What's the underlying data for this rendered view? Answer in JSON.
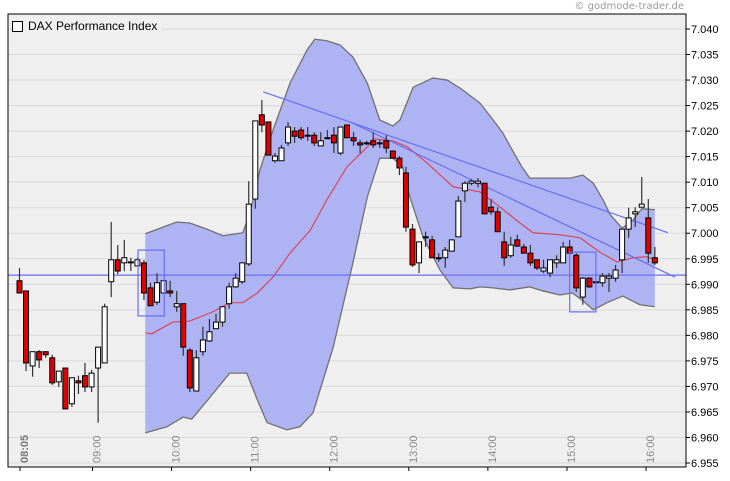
{
  "copyright": "© godmode-trader.de",
  "chart_data": {
    "type": "candlestick",
    "title": "DAX Performance Index",
    "ylabel": "",
    "xlabel": "",
    "ylim": [
      6955,
      7040
    ],
    "y_ticks": [
      7040,
      7035,
      7030,
      7025,
      7020,
      7015,
      7010,
      7005,
      7000,
      6995,
      6990,
      6985,
      6980,
      6975,
      6970,
      6965,
      6960,
      6955
    ],
    "y_tick_labels": [
      "7.040",
      "7.035",
      "7.030",
      "7.025",
      "7.020",
      "7.015",
      "7.010",
      "7.005",
      "7.000",
      "6.995",
      "6.990",
      "6.985",
      "6.980",
      "6.975",
      "6.970",
      "6.965",
      "6.960",
      "6.955"
    ],
    "x_ticks": [
      {
        "label": "08:05",
        "index": 0,
        "bold": true
      },
      {
        "label": "09:00",
        "index": 11
      },
      {
        "label": "10:00",
        "index": 23
      },
      {
        "label": "11:00",
        "index": 35
      },
      {
        "label": "12:00",
        "index": 47
      },
      {
        "label": "13:00",
        "index": 59
      },
      {
        "label": "14:00",
        "index": 71
      },
      {
        "label": "15:00",
        "index": 83
      },
      {
        "label": "16:00",
        "index": 95
      }
    ],
    "grid": true,
    "interval_minutes": 5,
    "candles_ohlc": [
      [
        6990.7,
        6993.2,
        6988.3,
        6988.3
      ],
      [
        6988.7,
        6988.7,
        6973.0,
        6974.6
      ],
      [
        6974.0,
        6976.8,
        6971.9,
        6976.8
      ],
      [
        6976.8,
        6977.1,
        6973.6,
        6975.2
      ],
      [
        6976.8,
        6976.8,
        6975.6,
        6976.2
      ],
      [
        6975.6,
        6976.2,
        6970.3,
        6970.7
      ],
      [
        6970.9,
        6973.0,
        6969.9,
        6973.0
      ],
      [
        6973.6,
        6973.6,
        6965.6,
        6965.6
      ],
      [
        6966.6,
        6971.7,
        6966.0,
        6971.7
      ],
      [
        6971.1,
        6972.1,
        6968.5,
        6970.7
      ],
      [
        6972.1,
        6974.6,
        6968.9,
        6969.9
      ],
      [
        6969.9,
        6973.2,
        6968.9,
        6972.6
      ],
      [
        6973.6,
        6977.7,
        6962.9,
        6977.7
      ],
      [
        6974.6,
        6986.2,
        6974.6,
        6985.6
      ],
      [
        6990.5,
        7002.2,
        6987.5,
        6994.8
      ],
      [
        6994.8,
        6997.7,
        6992.0,
        6992.6
      ],
      [
        6994.2,
        6998.7,
        6992.6,
        6995.2
      ],
      [
        6994.2,
        6995.2,
        6992.6,
        6994.4
      ],
      [
        6993.6,
        6995.2,
        6993.6,
        6994.8
      ],
      [
        6994.2,
        6994.8,
        6986.9,
        6988.3
      ],
      [
        6989.3,
        6990.3,
        6985.8,
        6985.8
      ],
      [
        6986.5,
        6992.2,
        6986.0,
        6990.3
      ],
      [
        6988.3,
        6990.7,
        6988.3,
        6990.7
      ],
      [
        6988.7,
        6990.7,
        6987.5,
        6988.3
      ],
      [
        6985.6,
        6988.7,
        6984.6,
        6986.2
      ],
      [
        6986.2,
        6986.2,
        6976.0,
        6977.7
      ],
      [
        6977.1,
        6977.5,
        6968.9,
        6969.7
      ],
      [
        6969.1,
        6977.1,
        6969.1,
        6975.6
      ],
      [
        6976.8,
        6981.7,
        6976.0,
        6979.1
      ],
      [
        6978.9,
        6983.2,
        6978.7,
        6980.7
      ],
      [
        6981.3,
        6984.2,
        6981.3,
        6982.6
      ],
      [
        6982.6,
        6985.6,
        6981.7,
        6985.6
      ],
      [
        6986.2,
        6990.3,
        6985.2,
        6989.5
      ],
      [
        6989.5,
        6992.2,
        6989.3,
        6991.2
      ],
      [
        6990.5,
        6994.2,
        6990.1,
        6994.2
      ],
      [
        6994.0,
        7010.2,
        6993.6,
        7005.7
      ],
      [
        7006.7,
        7022.0,
        7004.8,
        7022.0
      ],
      [
        7023.2,
        7026.1,
        7019.8,
        7021.2
      ],
      [
        7021.8,
        7021.8,
        7015.3,
        7015.3
      ],
      [
        7014.2,
        7015.7,
        7013.8,
        7015.1
      ],
      [
        7014.2,
        7017.3,
        7014.2,
        7016.7
      ],
      [
        7017.7,
        7021.8,
        7017.1,
        7020.8
      ],
      [
        7020.0,
        7020.8,
        7017.7,
        7019.0
      ],
      [
        7020.2,
        7020.8,
        7018.3,
        7018.7
      ],
      [
        7019.2,
        7020.8,
        7018.1,
        7019.1
      ],
      [
        7019.2,
        7019.8,
        7017.1,
        7017.7
      ],
      [
        7017.1,
        7019.8,
        7017.1,
        7018.1
      ],
      [
        7018.7,
        7020.2,
        7018.5,
        7018.6
      ],
      [
        7019.2,
        7020.8,
        7015.7,
        7017.7
      ],
      [
        7015.7,
        7020.8,
        7015.3,
        7020.8
      ],
      [
        7021.2,
        7021.2,
        7018.7,
        7018.7
      ],
      [
        7018.7,
        7019.8,
        7017.1,
        7018.1
      ],
      [
        7017.7,
        7018.3,
        7015.7,
        7017.3
      ],
      [
        7017.7,
        7018.1,
        7017.3,
        7017.6
      ],
      [
        7018.1,
        7019.8,
        7016.7,
        7017.3
      ],
      [
        7017.7,
        7018.3,
        7016.7,
        7017.6
      ],
      [
        7018.1,
        7019.2,
        7015.7,
        7016.7
      ],
      [
        7016.1,
        7016.1,
        7014.7,
        7014.7
      ],
      [
        7014.7,
        7015.1,
        7011.4,
        7012.8
      ],
      [
        7011.8,
        7013.0,
        7000.3,
        7001.2
      ],
      [
        7000.8,
        7001.8,
        6993.4,
        6993.8
      ],
      [
        6994.2,
        6998.3,
        6992.2,
        6998.3
      ],
      [
        6999.3,
        7000.3,
        6997.3,
        6999.2
      ],
      [
        6998.7,
        6999.5,
        6995.2,
        6995.2
      ],
      [
        6995.2,
        6996.1,
        6994.4,
        6995.1
      ],
      [
        6995.2,
        6997.3,
        6993.2,
        6996.7
      ],
      [
        6996.5,
        6998.7,
        6996.5,
        6998.7
      ],
      [
        6999.3,
        7007.3,
        6999.3,
        7006.3
      ],
      [
        7008.3,
        7010.2,
        7006.1,
        7009.8
      ],
      [
        7009.8,
        7010.6,
        7009.4,
        7010.2
      ],
      [
        7009.8,
        7010.8,
        7009.0,
        7010.2
      ],
      [
        7009.8,
        7009.8,
        7003.8,
        7003.8
      ],
      [
        7005.1,
        7006.7,
        7003.6,
        7004.2
      ],
      [
        7004.2,
        7005.1,
        7000.3,
        7000.3
      ],
      [
        6998.3,
        7000.3,
        6993.6,
        6995.2
      ],
      [
        6995.6,
        6999.3,
        6995.2,
        6997.7
      ],
      [
        6998.7,
        6999.7,
        6997.3,
        6997.5
      ],
      [
        6997.3,
        6997.9,
        6996.1,
        6996.1
      ],
      [
        6996.1,
        6997.7,
        6993.6,
        6994.2
      ],
      [
        6994.8,
        6994.8,
        6992.8,
        6993.2
      ],
      [
        6992.6,
        6994.8,
        6992.2,
        6993.2
      ],
      [
        6992.2,
        6994.8,
        6991.4,
        6994.8
      ],
      [
        6994.2,
        6995.7,
        6993.2,
        6994.8
      ],
      [
        6994.2,
        6998.3,
        6994.2,
        6997.3
      ],
      [
        6997.3,
        6998.7,
        6996.1,
        6996.1
      ],
      [
        6995.7,
        6996.1,
        6988.5,
        6989.3
      ],
      [
        6987.5,
        6991.4,
        6986.0,
        6991.2
      ],
      [
        6991.2,
        6991.4,
        6989.3,
        6989.5
      ],
      [
        6990.5,
        6990.7,
        6990.1,
        6990.4
      ],
      [
        6990.3,
        6992.2,
        6989.5,
        6991.6
      ],
      [
        6991.2,
        6992.2,
        6988.5,
        6991.6
      ],
      [
        6991.2,
        6993.8,
        6990.5,
        6992.8
      ],
      [
        6994.8,
        7000.8,
        6992.2,
        7000.8
      ],
      [
        7000.8,
        7005.0,
        6999.1,
        7003.0
      ],
      [
        7003.8,
        7005.1,
        7001.2,
        7004.2
      ],
      [
        7005.1,
        7011.0,
        7005.1,
        7005.7
      ],
      [
        7003.0,
        7006.7,
        6994.2,
        6996.1
      ],
      [
        6995.2,
        6997.3,
        6993.8,
        6994.2
      ]
    ],
    "bollinger_upper": [
      [
        19.2,
        6999.9
      ],
      [
        21.5,
        7001.0
      ],
      [
        24.0,
        7002.2
      ],
      [
        26.0,
        7002.0
      ],
      [
        28.6,
        7000.8
      ],
      [
        31.1,
        6999.5
      ],
      [
        34.1,
        7000.1
      ],
      [
        35.2,
        7004.0
      ],
      [
        36.7,
        7012.4
      ],
      [
        38.7,
        7020.2
      ],
      [
        41.3,
        7029.4
      ],
      [
        43.9,
        7035.9
      ],
      [
        45.1,
        7038.0
      ],
      [
        46.9,
        7037.7
      ],
      [
        48.9,
        7036.9
      ],
      [
        50.9,
        7034.5
      ],
      [
        53.1,
        7029.4
      ],
      [
        55.0,
        7022.2
      ],
      [
        57.0,
        7021.0
      ],
      [
        58.1,
        7022.2
      ],
      [
        60.1,
        7028.6
      ],
      [
        63.1,
        7030.4
      ],
      [
        65.3,
        7030.0
      ],
      [
        67.3,
        7028.4
      ],
      [
        70.3,
        7025.5
      ],
      [
        72.3,
        7022.2
      ],
      [
        73.8,
        7019.6
      ],
      [
        75.4,
        7015.9
      ],
      [
        76.7,
        7013.0
      ],
      [
        77.9,
        7010.8
      ],
      [
        84.1,
        7010.8
      ],
      [
        86.0,
        7011.4
      ],
      [
        87.6,
        7009.8
      ],
      [
        89.1,
        7006.5
      ],
      [
        90.2,
        7003.6
      ],
      [
        92.0,
        7001.0
      ],
      [
        93.7,
        7002.6
      ],
      [
        95.0,
        7004.8
      ],
      [
        97.0,
        7004.6
      ]
    ],
    "bollinger_lower": [
      [
        19.2,
        6960.9
      ],
      [
        22.5,
        6962.1
      ],
      [
        25.0,
        6964.0
      ],
      [
        26.3,
        6963.6
      ],
      [
        29.1,
        6967.9
      ],
      [
        32.1,
        6972.6
      ],
      [
        34.7,
        6972.6
      ],
      [
        36.3,
        6967.4
      ],
      [
        37.8,
        6962.9
      ],
      [
        40.8,
        6961.5
      ],
      [
        42.8,
        6962.1
      ],
      [
        44.8,
        6964.8
      ],
      [
        47.9,
        6977.7
      ],
      [
        50.9,
        6994.2
      ],
      [
        53.1,
        7007.1
      ],
      [
        55.0,
        7014.7
      ],
      [
        57.0,
        7014.7
      ],
      [
        58.5,
        7013.0
      ],
      [
        59.6,
        7007.1
      ],
      [
        61.6,
        6999.3
      ],
      [
        64.2,
        6992.8
      ],
      [
        66.2,
        6989.3
      ],
      [
        68.8,
        6989.1
      ],
      [
        70.3,
        6989.5
      ],
      [
        72.3,
        6989.3
      ],
      [
        74.9,
        6988.9
      ],
      [
        77.9,
        6989.5
      ],
      [
        79.9,
        6988.7
      ],
      [
        82.5,
        6987.9
      ],
      [
        84.4,
        6988.3
      ],
      [
        85.9,
        6986.9
      ],
      [
        87.6,
        6985.0
      ],
      [
        89.7,
        6986.4
      ],
      [
        92.1,
        6987.7
      ],
      [
        94.7,
        6986.0
      ],
      [
        97.0,
        6985.6
      ]
    ],
    "moving_average": [
      [
        19.2,
        6980.5
      ],
      [
        20.2,
        6980.3
      ],
      [
        23.4,
        6982.6
      ],
      [
        26.0,
        6982.8
      ],
      [
        29.5,
        6984.6
      ],
      [
        32.1,
        6986.4
      ],
      [
        34.1,
        6986.4
      ],
      [
        36.3,
        6988.3
      ],
      [
        38.7,
        6991.4
      ],
      [
        41.3,
        6996.1
      ],
      [
        44.4,
        7000.6
      ],
      [
        46.9,
        7006.5
      ],
      [
        50.0,
        7013.0
      ],
      [
        53.1,
        7016.9
      ],
      [
        54.0,
        7018.5
      ],
      [
        57.0,
        7018.1
      ],
      [
        59.2,
        7016.9
      ],
      [
        62.2,
        7013.8
      ],
      [
        66.2,
        7009.1
      ],
      [
        70.3,
        7008.1
      ],
      [
        73.4,
        7005.1
      ],
      [
        76.4,
        7002.0
      ],
      [
        78.4,
        7000.1
      ],
      [
        82.5,
        6999.7
      ],
      [
        85.6,
        6999.1
      ],
      [
        88.6,
        6996.3
      ],
      [
        91.2,
        6994.4
      ],
      [
        93.7,
        6995.2
      ],
      [
        95.8,
        6995.4
      ],
      [
        97.0,
        6994.8
      ]
    ],
    "trendlines": [
      [
        [
          37.2,
          7027.7
        ],
        [
          99.0,
          7000.1
        ]
      ],
      [
        [
          50.5,
          7021.8
        ],
        [
          100.1,
          6991.4
        ]
      ]
    ],
    "horizontal_line": 6991.8,
    "highlight_boxes": [
      [
        18.1,
        6996.7,
        22.1,
        6983.8
      ],
      [
        84.0,
        6996.3,
        88.0,
        6984.6
      ]
    ],
    "colors": {
      "band": "#aab0f2",
      "band_edge": "#707070",
      "ma": "#d9455a",
      "trend": "#6a6ef0",
      "up": "#ffffff",
      "down": "#e00000",
      "grid": "#d9d9d9",
      "plot_bg": "#efefef"
    }
  }
}
